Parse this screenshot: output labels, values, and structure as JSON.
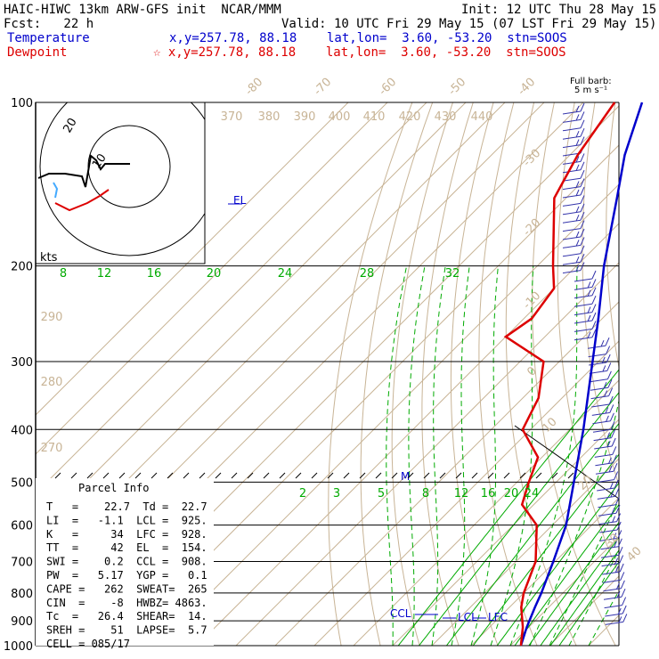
{
  "header": {
    "line1_left": "HAIC-HIWC 13km ARW-GFS init  NCAR/MMM",
    "line1_right": "Init: 12 UTC Thu 28 May 15",
    "line2_left": "Fcst:   22 h",
    "line2_right": "Valid: 10 UTC Fri 29 May 15 (07 LST Fri 29 May 15)",
    "temp_label": "Temperature",
    "temp_info": "x,y=257.78, 88.18    lat,lon=  3.60, -53.20  stn=SOOS",
    "dew_label": "Dewpoint",
    "dew_info": "x,y=257.78, 88.18    lat,lon=  3.60, -53.20  stn=SOOS",
    "barb_title": "Full barb:",
    "barb_sub": "5 m s⁻¹"
  },
  "colors": {
    "temperature": "#0000cc",
    "dewpoint": "#dd0000",
    "isotherm": "#c8b496",
    "mixing_ratio": "#00aa00",
    "axes": "#000000"
  },
  "chart_data": {
    "type": "line",
    "yscale": "log-pressure",
    "y_ticks": [
      100,
      200,
      300,
      400,
      500,
      600,
      700,
      800,
      900,
      1000
    ],
    "isotherm_labels": [
      "-80",
      "-70",
      "-60",
      "-50",
      "-40",
      "-30",
      "-20",
      "-10",
      "0",
      "10",
      "20",
      "30",
      "40"
    ],
    "theta_labels": [
      "370",
      "380",
      "390",
      "400",
      "410",
      "420",
      "430",
      "440",
      "290",
      "280",
      "270"
    ],
    "mixing_ratio_labels_upper": [
      "8",
      "12",
      "16",
      "20",
      "24",
      "28",
      "32"
    ],
    "mixing_ratio_labels_lower": [
      "2",
      "3",
      "5",
      "8",
      "12",
      "16",
      "20",
      "24"
    ],
    "series": [
      {
        "name": "Temperature",
        "markers": [
          "EL",
          "M",
          "CCL",
          "LCL",
          "LFC"
        ],
        "points": [
          [
            1000,
            22.7
          ],
          [
            925,
            19.5
          ],
          [
            850,
            16.5
          ],
          [
            800,
            14.5
          ],
          [
            700,
            9.5
          ],
          [
            600,
            3.5
          ],
          [
            500,
            -5.5
          ],
          [
            400,
            -16.5
          ],
          [
            300,
            -31.5
          ],
          [
            250,
            -41
          ],
          [
            200,
            -53
          ],
          [
            150,
            -67
          ],
          [
            125,
            -76
          ],
          [
            100,
            -85
          ]
        ]
      },
      {
        "name": "Dewpoint",
        "points": [
          [
            1000,
            22.7
          ],
          [
            925,
            18.5
          ],
          [
            850,
            13
          ],
          [
            800,
            10
          ],
          [
            700,
            5
          ],
          [
            600,
            -4
          ],
          [
            550,
            -13
          ],
          [
            500,
            -17
          ],
          [
            450,
            -21
          ],
          [
            400,
            -32
          ],
          [
            350,
            -36
          ],
          [
            300,
            -44
          ],
          [
            270,
            -60
          ],
          [
            250,
            -58
          ],
          [
            220,
            -60
          ],
          [
            200,
            -66
          ],
          [
            150,
            -83
          ],
          [
            125,
            -88
          ],
          [
            100,
            -92
          ]
        ]
      }
    ],
    "hodograph": {
      "units_label": "kts",
      "ring_label": "20"
    }
  },
  "parcel_info": {
    "title": "Parcel Info",
    "rows": [
      "T   =    22.7  Td =  22.7",
      "LI  =   -1.1  LCL =  925.",
      "K   =     34  LFC =  928.",
      "TT  =     42  EL  =  154.",
      "SWI =    0.2  CCL =  908.",
      "PW  =   5.17  YGP =   0.1",
      "CAPE =   262  SWEAT=  265",
      "CIN  =    -8  HWBZ= 4863.",
      "Tc  =   26.4  SHEAR=  14.",
      "SREH =    51  LAPSE=  5.7",
      "CELL = 085/17"
    ]
  }
}
